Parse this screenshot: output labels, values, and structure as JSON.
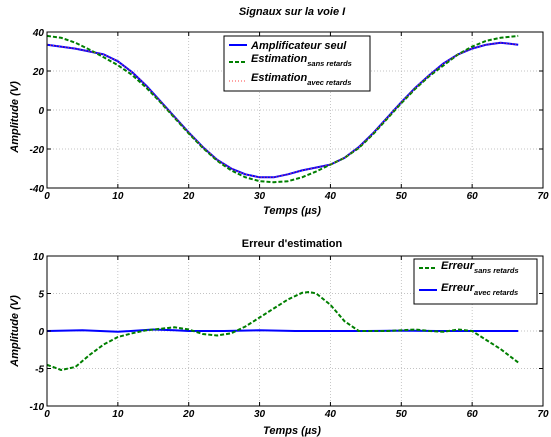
{
  "chart_data": [
    {
      "type": "line",
      "title": "Signaux sur la voie I",
      "xlabel": "Temps (µs)",
      "ylabel": "Amplitude (V)",
      "xlim": [
        0,
        70
      ],
      "ylim": [
        -40,
        40
      ],
      "xticks": [
        "0",
        "10",
        "20",
        "30",
        "40",
        "50",
        "60",
        "70"
      ],
      "yticks": [
        "40",
        "20",
        "0",
        "-20",
        "-40"
      ],
      "grid": true,
      "legend_position": "top-center",
      "series": [
        {
          "name": "Amplificateur seul",
          "color": "#0000ff",
          "style": "solid",
          "x": [
            0,
            4,
            8,
            10,
            12,
            14,
            16,
            18,
            20,
            22,
            24,
            26,
            28,
            30,
            32,
            34,
            36,
            38,
            40,
            42,
            44,
            46,
            48,
            50,
            52,
            54,
            56,
            58,
            60,
            62,
            64,
            66.5
          ],
          "y": [
            33.5,
            31.5,
            28.5,
            25,
            19.5,
            12.5,
            4.5,
            -3.5,
            -11.5,
            -19,
            -25.5,
            -30,
            -33,
            -34.5,
            -34.5,
            -33,
            -31,
            -29.5,
            -28,
            -24.5,
            -19,
            -12,
            -4,
            4,
            11.5,
            18,
            24,
            28.5,
            31.5,
            33.5,
            34.5,
            33.5
          ]
        },
        {
          "name": "Estimation",
          "name_sub": "sans retards",
          "color": "#007f00",
          "style": "dashed",
          "x": [
            0,
            2,
            4,
            6,
            8,
            10,
            12,
            14,
            16,
            18,
            20,
            22,
            24,
            26,
            28,
            30,
            32,
            34,
            36,
            38,
            40,
            42,
            44,
            46,
            48,
            50,
            52,
            54,
            56,
            58,
            60,
            62,
            64,
            66.5
          ],
          "y": [
            38,
            37,
            34.5,
            31,
            27,
            23,
            18,
            11.5,
            4,
            -4,
            -12,
            -19.5,
            -26,
            -31,
            -34.5,
            -36.5,
            -37,
            -36.5,
            -34.5,
            -31.5,
            -28,
            -24.5,
            -19.5,
            -12.5,
            -4.5,
            3.5,
            11,
            17.5,
            23,
            28.5,
            32.5,
            35.5,
            37,
            38
          ]
        },
        {
          "name": "Estimation",
          "name_sub": "avec retards",
          "color": "#ff4444",
          "style": "dotted",
          "x": [
            0,
            4,
            8,
            10,
            12,
            14,
            16,
            18,
            20,
            22,
            24,
            26,
            28,
            30,
            32,
            34,
            36,
            38,
            40,
            42,
            44,
            46,
            48,
            50,
            52,
            54,
            56,
            58,
            60,
            62,
            64,
            66.5
          ],
          "y": [
            33.5,
            31.5,
            28.5,
            25,
            19.5,
            12.5,
            4.5,
            -3.5,
            -11.5,
            -19,
            -25.5,
            -30,
            -33,
            -34.5,
            -34.5,
            -33,
            -31,
            -29.5,
            -28,
            -24.5,
            -19,
            -12,
            -4,
            4,
            11.5,
            18,
            24,
            28.5,
            31.5,
            33.5,
            34.5,
            33.5
          ]
        }
      ]
    },
    {
      "type": "line",
      "title": "Erreur d'estimation",
      "xlabel": "Temps (µs)",
      "ylabel": "Amplitude (V)",
      "xlim": [
        0,
        70
      ],
      "ylim": [
        -10,
        10
      ],
      "xticks": [
        "0",
        "10",
        "20",
        "30",
        "40",
        "50",
        "60",
        "70"
      ],
      "yticks": [
        "10",
        "5",
        "0",
        "-5",
        "-10"
      ],
      "grid": true,
      "legend_position": "top-right",
      "series": [
        {
          "name": "Erreur",
          "name_sub": "sans retards",
          "color": "#007f00",
          "style": "dashed",
          "x": [
            0,
            2,
            4,
            6,
            8,
            10,
            12,
            14,
            16,
            18,
            20,
            22,
            24,
            26,
            28,
            30,
            32,
            34,
            36,
            37,
            38,
            40,
            42,
            44,
            46,
            48,
            50,
            52,
            54,
            56,
            58,
            60,
            62,
            64,
            66.5
          ],
          "y": [
            -4.5,
            -5.2,
            -4.8,
            -3.2,
            -1.8,
            -0.8,
            -0.3,
            0.1,
            0.3,
            0.5,
            0.2,
            -0.4,
            -0.6,
            -0.3,
            0.6,
            1.8,
            3,
            4.2,
            5.1,
            5.2,
            5,
            3.5,
            1.3,
            0,
            0,
            0,
            0.1,
            0.2,
            0,
            -0.1,
            0.2,
            0,
            -1.2,
            -2.4,
            -4.2
          ]
        },
        {
          "name": "Erreur",
          "name_sub": "avec retards",
          "color": "#0000ff",
          "style": "solid",
          "x": [
            0,
            5,
            10,
            15,
            18,
            20,
            25,
            30,
            35,
            40,
            45,
            50,
            55,
            60,
            66.5
          ],
          "y": [
            0,
            0.1,
            -0.1,
            0.2,
            0.1,
            0,
            0,
            0.1,
            0,
            0,
            0,
            0.05,
            0,
            0,
            0
          ]
        }
      ]
    }
  ]
}
